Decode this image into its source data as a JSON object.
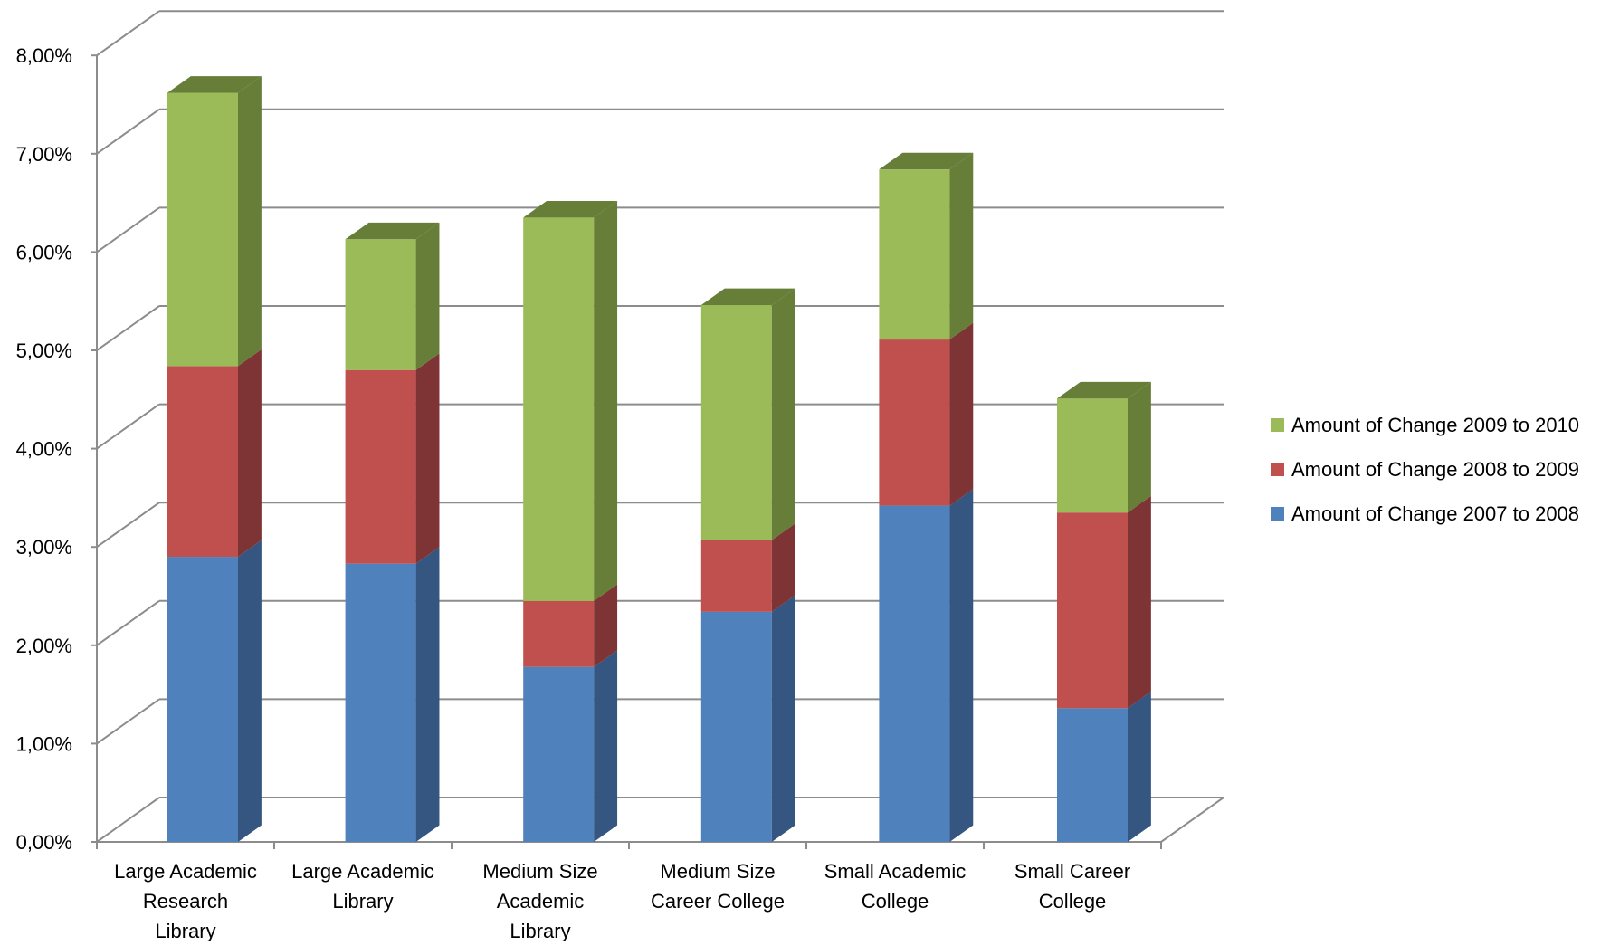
{
  "chart_data": {
    "type": "bar",
    "stacked": true,
    "three_d": true,
    "categories": [
      [
        "Large Academic",
        "Research",
        "Library"
      ],
      [
        "Large Academic",
        "Library"
      ],
      [
        "Medium Size",
        "Academic",
        "Library"
      ],
      [
        "Medium Size",
        "Career College"
      ],
      [
        "Small Academic",
        "College"
      ],
      [
        "Small Career",
        "College"
      ]
    ],
    "series": [
      {
        "name": "Amount of Change 2007 to 2008",
        "color": "#4f81bd",
        "side_color": "#355680",
        "values": [
          2.9,
          2.83,
          1.78,
          2.34,
          3.42,
          1.36
        ]
      },
      {
        "name": "Amount of Change 2008 to 2009",
        "color": "#c0504d",
        "side_color": "#7e3434",
        "values": [
          1.94,
          1.97,
          0.67,
          0.73,
          1.69,
          1.99
        ]
      },
      {
        "name": "Amount of Change 2009 to 2010",
        "color": "#9bbb59",
        "side_color": "#677e39",
        "values": [
          2.78,
          1.33,
          3.9,
          2.39,
          1.73,
          1.16
        ]
      }
    ],
    "y_ticks": [
      "0,00%",
      "1,00%",
      "2,00%",
      "3,00%",
      "4,00%",
      "5,00%",
      "6,00%",
      "7,00%",
      "8,00%"
    ],
    "ylim": [
      0,
      8
    ],
    "title": "",
    "xlabel": "",
    "ylabel": "",
    "grid": true,
    "legend_position": "right"
  }
}
